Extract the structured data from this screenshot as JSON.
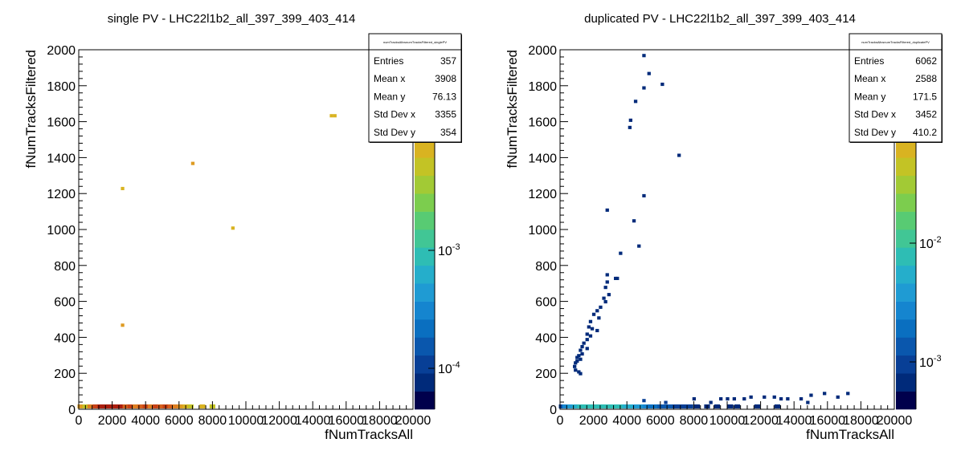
{
  "chart_data": [
    {
      "type": "heatmap",
      "title": "single PV - LHC22l1b2_all_397_399_403_414",
      "xlabel": "fNumTracksAll",
      "ylabel": "fNumTracksFiltered",
      "xlim": [
        0,
        20000
      ],
      "ylim": [
        0,
        2000
      ],
      "x_ticks": [
        "0",
        "2000",
        "4000",
        "6000",
        "8000",
        "10000",
        "12000",
        "14000",
        "16000",
        "18000",
        "20000"
      ],
      "y_ticks": [
        "0",
        "200",
        "400",
        "600",
        "800",
        "1000",
        "1200",
        "1400",
        "1600",
        "1800",
        "2000"
      ],
      "colorbar": {
        "scale": "log",
        "labels": [
          "10^{-4}",
          "10^{-3}"
        ],
        "partial_label": "2"
      },
      "stats": {
        "name": "numTracksAllvsnumTracksFiltered_singlePV",
        "rows": [
          {
            "label": "Entries",
            "value": "357"
          },
          {
            "label": "Mean x",
            "value": "3908"
          },
          {
            "label": "Mean y",
            "value": "76.13"
          },
          {
            "label": "Std Dev x",
            "value": "3355"
          },
          {
            "label": "Std Dev y",
            "value": "354"
          }
        ]
      },
      "points": [
        {
          "x": 2600,
          "y": 1230,
          "level": 14
        },
        {
          "x": 2600,
          "y": 470,
          "level": 15
        },
        {
          "x": 6800,
          "y": 1370,
          "level": 15
        },
        {
          "x": 9200,
          "y": 1010,
          "level": 14
        },
        {
          "x": 15100,
          "y": 1635,
          "level": 14
        },
        {
          "x": 15300,
          "y": 1635,
          "level": 14
        },
        {
          "x": 100,
          "y": 10,
          "level": 15
        },
        {
          "x": 400,
          "y": 10,
          "level": 13
        },
        {
          "x": 700,
          "y": 10,
          "level": 16
        },
        {
          "x": 1000,
          "y": 10,
          "level": 18
        },
        {
          "x": 1300,
          "y": 10,
          "level": 19
        },
        {
          "x": 1600,
          "y": 10,
          "level": 19
        },
        {
          "x": 1900,
          "y": 10,
          "level": 19
        },
        {
          "x": 2200,
          "y": 10,
          "level": 19
        },
        {
          "x": 2500,
          "y": 10,
          "level": 19
        },
        {
          "x": 2800,
          "y": 10,
          "level": 17
        },
        {
          "x": 3100,
          "y": 10,
          "level": 18
        },
        {
          "x": 3400,
          "y": 10,
          "level": 16
        },
        {
          "x": 3700,
          "y": 10,
          "level": 17
        },
        {
          "x": 4000,
          "y": 10,
          "level": 18
        },
        {
          "x": 4300,
          "y": 10,
          "level": 16
        },
        {
          "x": 4600,
          "y": 10,
          "level": 18
        },
        {
          "x": 4900,
          "y": 10,
          "level": 17
        },
        {
          "x": 5200,
          "y": 10,
          "level": 18
        },
        {
          "x": 5500,
          "y": 10,
          "level": 17
        },
        {
          "x": 5800,
          "y": 10,
          "level": 16
        },
        {
          "x": 6100,
          "y": 10,
          "level": 15
        },
        {
          "x": 6400,
          "y": 10,
          "level": 14
        },
        {
          "x": 6700,
          "y": 10,
          "level": 13
        },
        {
          "x": 7400,
          "y": 10,
          "level": 14
        },
        {
          "x": 8000,
          "y": 10,
          "level": 13
        }
      ]
    },
    {
      "type": "heatmap",
      "title": "duplicated PV - LHC22l1b2_all_397_399_403_414",
      "xlabel": "fNumTracksAll",
      "ylabel": "fNumTracksFiltered",
      "xlim": [
        0,
        20000
      ],
      "ylim": [
        0,
        2000
      ],
      "x_ticks": [
        "0",
        "2000",
        "4000",
        "6000",
        "8000",
        "10000",
        "12000",
        "14000",
        "16000",
        "18000",
        "20000"
      ],
      "y_ticks": [
        "0",
        "200",
        "400",
        "600",
        "800",
        "1000",
        "1200",
        "1400",
        "1600",
        "1800",
        "2000"
      ],
      "colorbar": {
        "scale": "log",
        "labels": [
          "10^{-3}",
          "10^{-2}"
        ],
        "partial_label": "1"
      },
      "stats": {
        "name": "numTracksAllvsnumTracksFiltered_duplicatePV",
        "rows": [
          {
            "label": "Entries",
            "value": "6062"
          },
          {
            "label": "Mean x",
            "value": "2588"
          },
          {
            "label": "Mean y",
            "value": "171.5"
          },
          {
            "label": "Std Dev x",
            "value": "3452"
          },
          {
            "label": "Std Dev y",
            "value": "410.2"
          }
        ]
      },
      "points": [
        {
          "x": 5000,
          "y": 1970,
          "level": 1
        },
        {
          "x": 5300,
          "y": 1870,
          "level": 1
        },
        {
          "x": 6100,
          "y": 1810,
          "level": 1
        },
        {
          "x": 5000,
          "y": 1790,
          "level": 1
        },
        {
          "x": 4500,
          "y": 1715,
          "level": 1
        },
        {
          "x": 4200,
          "y": 1610,
          "level": 1
        },
        {
          "x": 4150,
          "y": 1570,
          "level": 1
        },
        {
          "x": 7100,
          "y": 1415,
          "level": 1
        },
        {
          "x": 5000,
          "y": 1190,
          "level": 1
        },
        {
          "x": 2800,
          "y": 1110,
          "level": 1
        },
        {
          "x": 4400,
          "y": 1050,
          "level": 1
        },
        {
          "x": 4700,
          "y": 910,
          "level": 1
        },
        {
          "x": 3600,
          "y": 870,
          "level": 1
        },
        {
          "x": 2800,
          "y": 750,
          "level": 1
        },
        {
          "x": 3300,
          "y": 730,
          "level": 1
        },
        {
          "x": 3400,
          "y": 730,
          "level": 1
        },
        {
          "x": 2800,
          "y": 710,
          "level": 1
        },
        {
          "x": 2700,
          "y": 680,
          "level": 1
        },
        {
          "x": 2900,
          "y": 640,
          "level": 1
        },
        {
          "x": 2600,
          "y": 620,
          "level": 1
        },
        {
          "x": 2700,
          "y": 600,
          "level": 1
        },
        {
          "x": 2400,
          "y": 570,
          "level": 1
        },
        {
          "x": 2200,
          "y": 550,
          "level": 1
        },
        {
          "x": 2000,
          "y": 530,
          "level": 1
        },
        {
          "x": 2300,
          "y": 510,
          "level": 1
        },
        {
          "x": 1800,
          "y": 490,
          "level": 1
        },
        {
          "x": 1700,
          "y": 460,
          "level": 1
        },
        {
          "x": 1900,
          "y": 450,
          "level": 1
        },
        {
          "x": 2200,
          "y": 440,
          "level": 1
        },
        {
          "x": 1600,
          "y": 420,
          "level": 1
        },
        {
          "x": 1800,
          "y": 410,
          "level": 1
        },
        {
          "x": 1600,
          "y": 390,
          "level": 1
        },
        {
          "x": 1400,
          "y": 370,
          "level": 1
        },
        {
          "x": 1300,
          "y": 350,
          "level": 1
        },
        {
          "x": 1600,
          "y": 340,
          "level": 1
        },
        {
          "x": 1200,
          "y": 330,
          "level": 1
        },
        {
          "x": 1300,
          "y": 310,
          "level": 1
        },
        {
          "x": 1100,
          "y": 300,
          "level": 1
        },
        {
          "x": 1000,
          "y": 290,
          "level": 1
        },
        {
          "x": 1200,
          "y": 280,
          "level": 1
        },
        {
          "x": 1000,
          "y": 270,
          "level": 1
        },
        {
          "x": 900,
          "y": 260,
          "level": 1
        },
        {
          "x": 850,
          "y": 240,
          "level": 1
        },
        {
          "x": 900,
          "y": 220,
          "level": 1
        },
        {
          "x": 1100,
          "y": 210,
          "level": 1
        },
        {
          "x": 1200,
          "y": 200,
          "level": 1
        },
        {
          "x": 8000,
          "y": 60,
          "level": 1
        },
        {
          "x": 9000,
          "y": 40,
          "level": 1
        },
        {
          "x": 9600,
          "y": 60,
          "level": 1
        },
        {
          "x": 10000,
          "y": 60,
          "level": 1
        },
        {
          "x": 10400,
          "y": 60,
          "level": 1
        },
        {
          "x": 11000,
          "y": 60,
          "level": 1
        },
        {
          "x": 11400,
          "y": 70,
          "level": 1
        },
        {
          "x": 12200,
          "y": 70,
          "level": 1
        },
        {
          "x": 12800,
          "y": 70,
          "level": 1
        },
        {
          "x": 13200,
          "y": 60,
          "level": 1
        },
        {
          "x": 13600,
          "y": 60,
          "level": 1
        },
        {
          "x": 14400,
          "y": 60,
          "level": 1
        },
        {
          "x": 15000,
          "y": 80,
          "level": 1
        },
        {
          "x": 15800,
          "y": 90,
          "level": 1
        },
        {
          "x": 16600,
          "y": 70,
          "level": 1
        },
        {
          "x": 17200,
          "y": 90,
          "level": 1
        },
        {
          "x": 14800,
          "y": 40,
          "level": 1
        },
        {
          "x": 10200,
          "y": 30,
          "level": 1
        },
        {
          "x": 5000,
          "y": 50,
          "level": 2
        },
        {
          "x": 6300,
          "y": 40,
          "level": 2
        },
        {
          "x": 100,
          "y": 10,
          "level": 2
        },
        {
          "x": 300,
          "y": 10,
          "level": 5
        },
        {
          "x": 600,
          "y": 10,
          "level": 6
        },
        {
          "x": 900,
          "y": 10,
          "level": 7
        },
        {
          "x": 1200,
          "y": 10,
          "level": 8
        },
        {
          "x": 1500,
          "y": 10,
          "level": 8
        },
        {
          "x": 1800,
          "y": 10,
          "level": 8
        },
        {
          "x": 2100,
          "y": 10,
          "level": 8
        },
        {
          "x": 2400,
          "y": 10,
          "level": 8
        },
        {
          "x": 2700,
          "y": 10,
          "level": 8
        },
        {
          "x": 3000,
          "y": 10,
          "level": 8
        },
        {
          "x": 3300,
          "y": 10,
          "level": 8
        },
        {
          "x": 3600,
          "y": 10,
          "level": 8
        },
        {
          "x": 3900,
          "y": 10,
          "level": 7
        },
        {
          "x": 4200,
          "y": 10,
          "level": 7
        },
        {
          "x": 4500,
          "y": 10,
          "level": 6
        },
        {
          "x": 4800,
          "y": 10,
          "level": 6
        },
        {
          "x": 5100,
          "y": 10,
          "level": 5
        },
        {
          "x": 5400,
          "y": 10,
          "level": 4
        },
        {
          "x": 5700,
          "y": 10,
          "level": 4
        },
        {
          "x": 6000,
          "y": 10,
          "level": 3
        },
        {
          "x": 6300,
          "y": 10,
          "level": 3
        },
        {
          "x": 6600,
          "y": 10,
          "level": 3
        },
        {
          "x": 6900,
          "y": 10,
          "level": 2
        },
        {
          "x": 7200,
          "y": 10,
          "level": 2
        },
        {
          "x": 7500,
          "y": 10,
          "level": 2
        },
        {
          "x": 7800,
          "y": 10,
          "level": 2
        },
        {
          "x": 8200,
          "y": 10,
          "level": 1
        },
        {
          "x": 8800,
          "y": 10,
          "level": 1
        },
        {
          "x": 9400,
          "y": 10,
          "level": 1
        },
        {
          "x": 10600,
          "y": 10,
          "level": 1
        },
        {
          "x": 11800,
          "y": 10,
          "level": 1
        },
        {
          "x": 13000,
          "y": 10,
          "level": 1
        }
      ]
    }
  ]
}
